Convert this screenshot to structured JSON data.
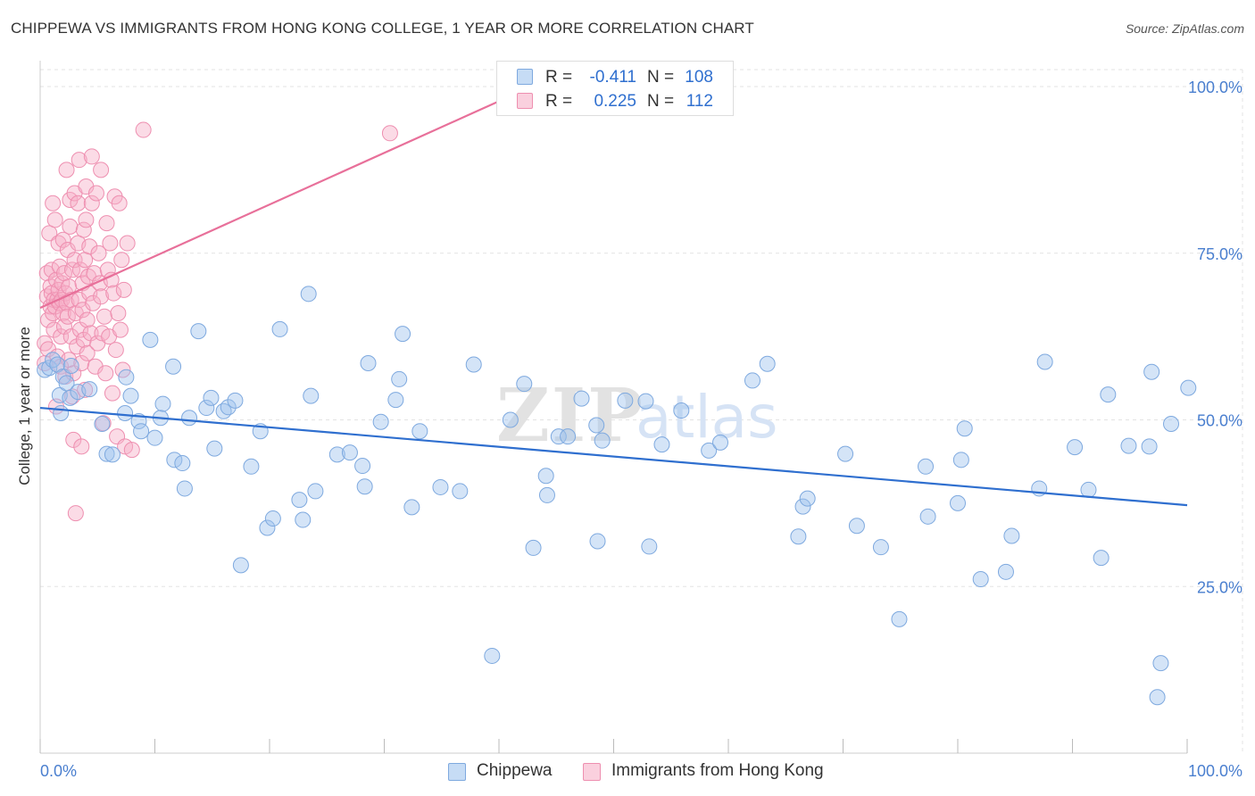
{
  "header": {
    "title": "CHIPPEWA VS IMMIGRANTS FROM HONG KONG COLLEGE, 1 YEAR OR MORE CORRELATION CHART",
    "source": "Source: ZipAtlas.com"
  },
  "watermark": {
    "part1": "ZIP",
    "part2": "atlas"
  },
  "legend_top": {
    "r_label": "R =",
    "n_label": "N =",
    "series": [
      {
        "name": "Chippewa",
        "r": "-0.411",
        "n": "108"
      },
      {
        "name": "Immigrants from Hong Kong",
        "r": "0.225",
        "n": "112"
      }
    ]
  },
  "legend_bottom": [
    {
      "label": "Chippewa"
    },
    {
      "label": "Immigrants from Hong Kong"
    }
  ],
  "colors": {
    "blue_fill": "rgba(160,196,238,0.45)",
    "blue_stroke": "#7ea9df",
    "blue_line": "#2f6fcf",
    "pink_fill": "rgba(246,176,200,0.45)",
    "pink_stroke": "#ee8fb0",
    "pink_line": "#e8709a",
    "axis_label": "#4a7fcf",
    "grid": "#e3e3e3"
  },
  "chart_data": {
    "type": "scatter",
    "title": "CHIPPEWA VS IMMIGRANTS FROM HONG KONG COLLEGE, 1 YEAR OR MORE CORRELATION CHART",
    "xlabel": "",
    "ylabel": "College, 1 year or more",
    "xlim": [
      0,
      100
    ],
    "ylim": [
      0,
      100
    ],
    "x_tick_labels": [
      "0.0%",
      "100.0%"
    ],
    "y_ticks": [
      25,
      50,
      75,
      100
    ],
    "y_tick_labels": [
      "25.0%",
      "50.0%",
      "75.0%",
      "100.0%"
    ],
    "grid": true,
    "series": [
      {
        "name": "Chippewa",
        "r": -0.411,
        "n": 108,
        "trend": {
          "x": [
            0,
            100
          ],
          "y": [
            51.8,
            37.2
          ]
        },
        "points": [
          [
            0.4,
            57.5
          ],
          [
            0.8,
            57.8
          ],
          [
            1.1,
            59.0
          ],
          [
            1.5,
            58.3
          ],
          [
            1.7,
            53.7
          ],
          [
            1.8,
            51.0
          ],
          [
            2.0,
            56.5
          ],
          [
            2.3,
            55.5
          ],
          [
            2.6,
            53.3
          ],
          [
            2.7,
            58.1
          ],
          [
            3.3,
            54.2
          ],
          [
            4.3,
            54.6
          ],
          [
            5.4,
            49.4
          ],
          [
            5.8,
            44.9
          ],
          [
            6.3,
            44.8
          ],
          [
            7.4,
            51.0
          ],
          [
            7.5,
            56.4
          ],
          [
            7.9,
            53.6
          ],
          [
            8.6,
            49.8
          ],
          [
            8.8,
            48.3
          ],
          [
            9.6,
            62.0
          ],
          [
            10.0,
            47.3
          ],
          [
            10.5,
            50.3
          ],
          [
            10.7,
            52.4
          ],
          [
            11.6,
            58.0
          ],
          [
            11.7,
            44.0
          ],
          [
            12.4,
            43.5
          ],
          [
            12.6,
            39.7
          ],
          [
            13.0,
            50.3
          ],
          [
            13.8,
            63.3
          ],
          [
            14.5,
            51.8
          ],
          [
            14.9,
            53.3
          ],
          [
            15.2,
            45.7
          ],
          [
            16.0,
            51.3
          ],
          [
            16.4,
            51.9
          ],
          [
            17.0,
            52.9
          ],
          [
            17.5,
            28.2
          ],
          [
            18.4,
            43.0
          ],
          [
            19.2,
            48.3
          ],
          [
            19.8,
            33.8
          ],
          [
            20.3,
            35.2
          ],
          [
            20.9,
            63.6
          ],
          [
            22.6,
            38.0
          ],
          [
            22.9,
            35.0
          ],
          [
            23.4,
            68.9
          ],
          [
            23.6,
            53.6
          ],
          [
            24.0,
            39.3
          ],
          [
            25.9,
            44.8
          ],
          [
            27.0,
            45.1
          ],
          [
            28.1,
            43.1
          ],
          [
            28.3,
            40.0
          ],
          [
            28.6,
            58.5
          ],
          [
            29.7,
            49.7
          ],
          [
            31.0,
            53.0
          ],
          [
            31.3,
            56.1
          ],
          [
            31.6,
            62.9
          ],
          [
            32.4,
            36.9
          ],
          [
            33.1,
            48.3
          ],
          [
            34.9,
            39.9
          ],
          [
            36.6,
            39.3
          ],
          [
            37.8,
            58.3
          ],
          [
            39.4,
            14.6
          ],
          [
            41.0,
            50.0
          ],
          [
            42.2,
            55.4
          ],
          [
            43.0,
            30.8
          ],
          [
            44.1,
            41.6
          ],
          [
            44.2,
            38.7
          ],
          [
            45.2,
            47.5
          ],
          [
            46.0,
            47.5
          ],
          [
            47.2,
            53.2
          ],
          [
            48.5,
            49.2
          ],
          [
            48.6,
            31.8
          ],
          [
            49.0,
            46.9
          ],
          [
            51.0,
            52.9
          ],
          [
            52.8,
            52.8
          ],
          [
            53.1,
            31.0
          ],
          [
            54.2,
            46.3
          ],
          [
            55.9,
            51.4
          ],
          [
            58.3,
            45.4
          ],
          [
            59.3,
            46.6
          ],
          [
            62.1,
            55.9
          ],
          [
            63.4,
            58.4
          ],
          [
            66.1,
            32.5
          ],
          [
            66.5,
            37.0
          ],
          [
            66.9,
            38.2
          ],
          [
            70.2,
            44.9
          ],
          [
            71.2,
            34.1
          ],
          [
            73.3,
            30.9
          ],
          [
            74.9,
            20.1
          ],
          [
            77.2,
            43.0
          ],
          [
            77.4,
            35.5
          ],
          [
            80.0,
            37.5
          ],
          [
            80.3,
            44.0
          ],
          [
            80.6,
            48.7
          ],
          [
            82.0,
            26.1
          ],
          [
            84.2,
            27.2
          ],
          [
            84.7,
            32.6
          ],
          [
            87.1,
            39.7
          ],
          [
            87.6,
            58.7
          ],
          [
            90.2,
            45.9
          ],
          [
            91.4,
            39.5
          ],
          [
            92.5,
            29.3
          ],
          [
            93.1,
            53.8
          ],
          [
            94.9,
            46.1
          ],
          [
            96.7,
            46.0
          ],
          [
            96.9,
            57.2
          ],
          [
            97.4,
            8.4
          ],
          [
            97.7,
            13.5
          ],
          [
            98.6,
            49.4
          ],
          [
            100.1,
            54.8
          ]
        ]
      },
      {
        "name": "Immigrants from Hong Kong",
        "r": 0.225,
        "n": 112,
        "trend": {
          "x": [
            0,
            40.9
          ],
          "y": [
            66.8,
            98.5
          ]
        },
        "points": [
          [
            0.4,
            58.5
          ],
          [
            0.4,
            61.5
          ],
          [
            0.6,
            68.5
          ],
          [
            0.6,
            72.0
          ],
          [
            0.7,
            65.0
          ],
          [
            0.7,
            60.6
          ],
          [
            0.8,
            78.0
          ],
          [
            0.9,
            70.0
          ],
          [
            0.9,
            67.0
          ],
          [
            1.0,
            69.0
          ],
          [
            1.0,
            72.5
          ],
          [
            1.1,
            82.5
          ],
          [
            1.1,
            66.0
          ],
          [
            1.2,
            68.0
          ],
          [
            1.2,
            63.5
          ],
          [
            1.3,
            67.0
          ],
          [
            1.3,
            80.0
          ],
          [
            1.4,
            71.0
          ],
          [
            1.4,
            52.0
          ],
          [
            1.5,
            68.0
          ],
          [
            1.5,
            59.5
          ],
          [
            1.6,
            69.5
          ],
          [
            1.6,
            76.5
          ],
          [
            1.7,
            73.0
          ],
          [
            1.7,
            67.5
          ],
          [
            1.8,
            62.5
          ],
          [
            1.8,
            58.0
          ],
          [
            1.9,
            70.5
          ],
          [
            1.9,
            68.0
          ],
          [
            2.0,
            66.0
          ],
          [
            2.0,
            77.0
          ],
          [
            2.1,
            72.0
          ],
          [
            2.1,
            64.0
          ],
          [
            2.2,
            69.0
          ],
          [
            2.2,
            56.5
          ],
          [
            2.3,
            67.5
          ],
          [
            2.3,
            87.5
          ],
          [
            2.4,
            65.5
          ],
          [
            2.4,
            75.5
          ],
          [
            2.5,
            70.0
          ],
          [
            2.5,
            59.0
          ],
          [
            2.6,
            83.0
          ],
          [
            2.6,
            79.0
          ],
          [
            2.7,
            62.5
          ],
          [
            2.7,
            68.0
          ],
          [
            2.8,
            72.5
          ],
          [
            2.8,
            53.5
          ],
          [
            2.9,
            47.0
          ],
          [
            2.9,
            57.0
          ],
          [
            3.0,
            84.0
          ],
          [
            3.0,
            74.0
          ],
          [
            3.1,
            66.0
          ],
          [
            3.1,
            36.0
          ],
          [
            3.2,
            61.0
          ],
          [
            3.3,
            82.5
          ],
          [
            3.3,
            76.5
          ],
          [
            3.4,
            68.0
          ],
          [
            3.4,
            89.0
          ],
          [
            3.5,
            63.5
          ],
          [
            3.5,
            72.5
          ],
          [
            3.6,
            46.0
          ],
          [
            3.6,
            58.5
          ],
          [
            3.7,
            66.5
          ],
          [
            3.7,
            70.5
          ],
          [
            3.8,
            62.0
          ],
          [
            3.8,
            78.5
          ],
          [
            3.9,
            74.0
          ],
          [
            3.9,
            54.5
          ],
          [
            4.0,
            80.0
          ],
          [
            4.0,
            85.0
          ],
          [
            4.1,
            65.0
          ],
          [
            4.1,
            60.0
          ],
          [
            4.2,
            71.5
          ],
          [
            4.3,
            69.0
          ],
          [
            4.3,
            76.0
          ],
          [
            4.4,
            63.0
          ],
          [
            4.5,
            82.5
          ],
          [
            4.5,
            89.5
          ],
          [
            4.6,
            67.5
          ],
          [
            4.7,
            72.0
          ],
          [
            4.8,
            58.0
          ],
          [
            4.9,
            84.0
          ],
          [
            5.0,
            61.5
          ],
          [
            5.1,
            75.0
          ],
          [
            5.2,
            70.5
          ],
          [
            5.3,
            68.5
          ],
          [
            5.3,
            87.5
          ],
          [
            5.4,
            63.0
          ],
          [
            5.5,
            49.5
          ],
          [
            5.6,
            65.5
          ],
          [
            5.7,
            57.0
          ],
          [
            5.8,
            79.5
          ],
          [
            5.9,
            72.5
          ],
          [
            6.0,
            62.5
          ],
          [
            6.1,
            76.5
          ],
          [
            6.2,
            71.0
          ],
          [
            6.3,
            54.0
          ],
          [
            6.4,
            69.0
          ],
          [
            6.5,
            83.5
          ],
          [
            6.6,
            60.5
          ],
          [
            6.7,
            47.5
          ],
          [
            6.8,
            66.0
          ],
          [
            6.9,
            82.5
          ],
          [
            7.0,
            63.5
          ],
          [
            7.1,
            74.0
          ],
          [
            7.2,
            57.5
          ],
          [
            7.3,
            69.5
          ],
          [
            7.4,
            46.0
          ],
          [
            7.6,
            76.5
          ],
          [
            8.0,
            45.5
          ],
          [
            9.0,
            93.5
          ],
          [
            30.5,
            93.0
          ]
        ]
      }
    ]
  }
}
